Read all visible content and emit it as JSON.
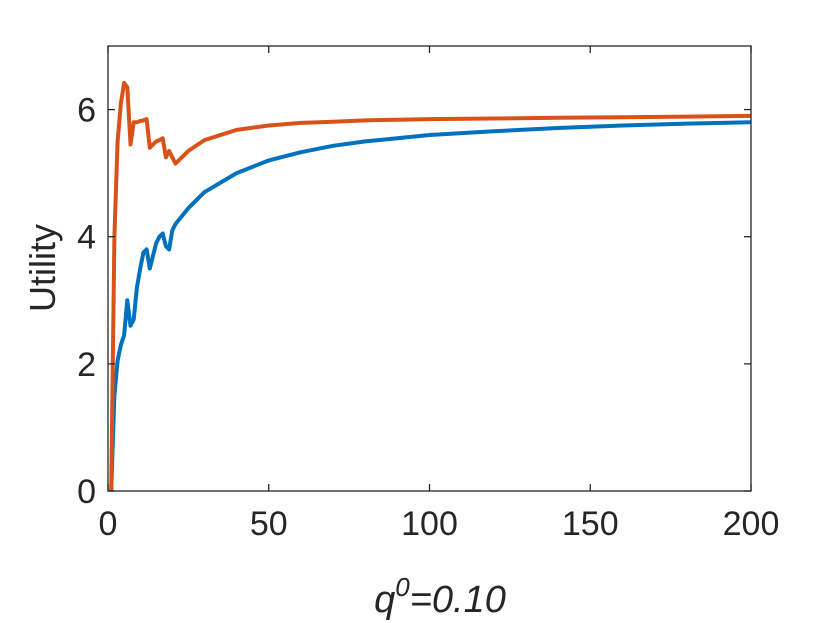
{
  "chart_data": {
    "type": "line",
    "title": "",
    "xlabel": "q^0=0.10",
    "xlabel_parts": {
      "base": "q",
      "sup": "0",
      "rest": "=0.10"
    },
    "ylabel": "Utility",
    "xlim": [
      0,
      200
    ],
    "ylim": [
      0,
      7
    ],
    "xticks": [
      0,
      50,
      100,
      150,
      200
    ],
    "yticks": [
      0,
      2,
      4,
      6
    ],
    "xtick_labels": [
      "0",
      "50",
      "100",
      "150",
      "200"
    ],
    "ytick_labels": [
      "0",
      "2",
      "4",
      "6"
    ],
    "grid": false,
    "legend": null,
    "series": [
      {
        "color": "#0072BD",
        "x": [
          1,
          2,
          3,
          4,
          5,
          6,
          7,
          8,
          9,
          10,
          11,
          12,
          13,
          14,
          15,
          16,
          17,
          18,
          19,
          20,
          21,
          25,
          30,
          40,
          50,
          60,
          70,
          80,
          90,
          100,
          120,
          140,
          160,
          180,
          200
        ],
        "y": [
          0,
          1.5,
          2.05,
          2.3,
          2.45,
          3.0,
          2.6,
          2.7,
          3.2,
          3.5,
          3.75,
          3.8,
          3.5,
          3.7,
          3.9,
          4.0,
          4.05,
          3.85,
          3.8,
          4.1,
          4.2,
          4.45,
          4.7,
          5.0,
          5.2,
          5.33,
          5.43,
          5.5,
          5.55,
          5.6,
          5.66,
          5.71,
          5.75,
          5.78,
          5.8
        ]
      },
      {
        "color": "#D95319",
        "x": [
          1,
          2,
          3,
          4,
          5,
          6,
          7,
          8,
          9,
          10,
          11,
          12,
          13,
          14,
          15,
          16,
          17,
          18,
          19,
          20,
          21,
          25,
          30,
          40,
          50,
          60,
          70,
          80,
          90,
          100,
          120,
          140,
          160,
          180,
          200
        ],
        "y": [
          0,
          4.0,
          5.5,
          6.1,
          6.42,
          6.35,
          5.45,
          5.8,
          5.8,
          5.82,
          5.83,
          5.85,
          5.4,
          5.45,
          5.5,
          5.52,
          5.55,
          5.25,
          5.35,
          5.25,
          5.15,
          5.35,
          5.52,
          5.68,
          5.75,
          5.79,
          5.81,
          5.83,
          5.84,
          5.85,
          5.86,
          5.87,
          5.88,
          5.89,
          5.9
        ]
      }
    ]
  }
}
